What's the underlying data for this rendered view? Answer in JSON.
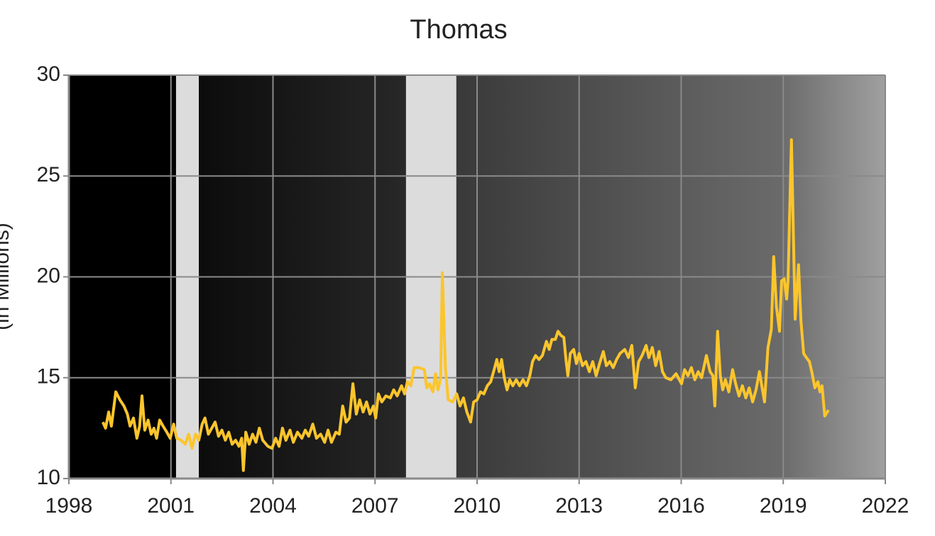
{
  "chart_data": {
    "type": "line",
    "title": "Thomas",
    "ylabel": "(in Millions)",
    "x": [
      1999.0,
      1999.08,
      1999.17,
      1999.25,
      1999.38,
      1999.5,
      1999.62,
      1999.72,
      1999.8,
      1999.9,
      2000.0,
      2000.08,
      2000.15,
      2000.23,
      2000.33,
      2000.42,
      2000.5,
      2000.58,
      2000.67,
      2000.77,
      2000.88,
      2000.98,
      2001.08,
      2001.17,
      2001.3,
      2001.42,
      2001.52,
      2001.62,
      2001.72,
      2001.82,
      2001.92,
      2002.0,
      2002.1,
      2002.2,
      2002.3,
      2002.4,
      2002.5,
      2002.6,
      2002.7,
      2002.8,
      2002.9,
      2003.0,
      2003.08,
      2003.13,
      2003.2,
      2003.3,
      2003.4,
      2003.5,
      2003.6,
      2003.7,
      2003.85,
      2003.97,
      2004.08,
      2004.18,
      2004.28,
      2004.38,
      2004.5,
      2004.6,
      2004.72,
      2004.85,
      2004.95,
      2005.05,
      2005.17,
      2005.28,
      2005.4,
      2005.52,
      2005.62,
      2005.72,
      2005.85,
      2005.95,
      2006.05,
      2006.15,
      2006.25,
      2006.35,
      2006.45,
      2006.55,
      2006.65,
      2006.75,
      2006.85,
      2006.95,
      2007.02,
      2007.1,
      2007.2,
      2007.32,
      2007.45,
      2007.55,
      2007.65,
      2007.78,
      2007.87,
      2007.95,
      2008.05,
      2008.15,
      2008.3,
      2008.45,
      2008.52,
      2008.6,
      2008.7,
      2008.78,
      2008.85,
      2008.93,
      2008.98,
      2009.07,
      2009.15,
      2009.28,
      2009.4,
      2009.5,
      2009.6,
      2009.7,
      2009.81,
      2009.9,
      2010.0,
      2010.1,
      2010.2,
      2010.3,
      2010.4,
      2010.5,
      2010.58,
      2010.65,
      2010.72,
      2010.8,
      2010.88,
      2010.96,
      2011.05,
      2011.15,
      2011.25,
      2011.35,
      2011.45,
      2011.55,
      2011.63,
      2011.72,
      2011.82,
      2011.92,
      2012.04,
      2012.12,
      2012.2,
      2012.3,
      2012.38,
      2012.46,
      2012.55,
      2012.62,
      2012.67,
      2012.74,
      2012.84,
      2012.92,
      2013.0,
      2013.1,
      2013.2,
      2013.3,
      2013.4,
      2013.5,
      2013.6,
      2013.71,
      2013.8,
      2013.9,
      2014.0,
      2014.1,
      2014.2,
      2014.34,
      2014.45,
      2014.55,
      2014.65,
      2014.75,
      2014.85,
      2014.97,
      2015.05,
      2015.15,
      2015.25,
      2015.35,
      2015.45,
      2015.55,
      2015.7,
      2015.85,
      2016.01,
      2016.1,
      2016.2,
      2016.3,
      2016.4,
      2016.5,
      2016.6,
      2016.74,
      2016.85,
      2016.93,
      2016.99,
      2017.07,
      2017.15,
      2017.22,
      2017.3,
      2017.4,
      2017.51,
      2017.6,
      2017.7,
      2017.8,
      2017.9,
      2018.0,
      2018.1,
      2018.2,
      2018.3,
      2018.38,
      2018.45,
      2018.55,
      2018.65,
      2018.72,
      2018.8,
      2018.89,
      2018.95,
      2019.03,
      2019.1,
      2019.14,
      2019.24,
      2019.3,
      2019.35,
      2019.45,
      2019.52,
      2019.6,
      2019.68,
      2019.77,
      2019.85,
      2019.93,
      2020.02,
      2020.08,
      2020.14,
      2020.22,
      2020.33
    ],
    "series": [
      {
        "color": "#fbc52c",
        "values": [
          12.8,
          12.5,
          13.3,
          12.6,
          14.3,
          13.9,
          13.6,
          13.2,
          12.6,
          13.0,
          12.0,
          12.6,
          14.1,
          12.4,
          12.9,
          12.2,
          12.5,
          12.0,
          12.9,
          12.6,
          12.3,
          12.0,
          12.7,
          12.0,
          11.9,
          11.7,
          12.2,
          11.5,
          12.2,
          11.9,
          12.7,
          13.0,
          12.2,
          12.5,
          12.8,
          12.1,
          12.4,
          11.9,
          12.3,
          11.7,
          11.9,
          11.6,
          12.0,
          10.4,
          12.3,
          11.7,
          12.2,
          11.8,
          12.5,
          11.9,
          11.6,
          11.5,
          12.0,
          11.6,
          12.5,
          11.9,
          12.4,
          11.8,
          12.3,
          12.0,
          12.4,
          12.1,
          12.7,
          12.0,
          12.2,
          11.8,
          12.4,
          11.8,
          12.3,
          12.2,
          13.6,
          12.8,
          13.0,
          14.7,
          13.2,
          13.9,
          13.3,
          13.8,
          13.2,
          13.6,
          13.0,
          14.2,
          13.8,
          14.1,
          14.0,
          14.4,
          14.1,
          14.6,
          14.2,
          14.8,
          14.6,
          15.5,
          15.5,
          15.4,
          14.5,
          14.7,
          14.3,
          15.2,
          14.4,
          15.0,
          20.2,
          15.5,
          13.9,
          13.8,
          14.2,
          13.6,
          14.0,
          13.3,
          12.8,
          13.8,
          13.9,
          14.3,
          14.2,
          14.6,
          14.8,
          15.4,
          15.9,
          15.3,
          15.9,
          15.0,
          14.4,
          14.9,
          14.6,
          14.9,
          14.6,
          14.9,
          14.6,
          15.1,
          15.8,
          16.1,
          15.9,
          16.1,
          16.8,
          16.4,
          16.9,
          16.9,
          17.3,
          17.1,
          17.0,
          15.8,
          15.1,
          16.2,
          16.4,
          15.7,
          16.2,
          15.6,
          15.8,
          15.3,
          15.8,
          15.1,
          15.7,
          16.3,
          15.6,
          15.8,
          15.5,
          15.9,
          16.2,
          16.4,
          16.0,
          16.6,
          14.5,
          15.8,
          16.1,
          16.6,
          16.0,
          16.5,
          15.6,
          16.3,
          15.3,
          15.0,
          14.9,
          15.2,
          14.7,
          15.4,
          15.1,
          15.5,
          14.9,
          15.3,
          15.0,
          16.1,
          15.3,
          15.1,
          13.6,
          17.3,
          15.1,
          14.4,
          14.9,
          14.3,
          15.4,
          14.7,
          14.1,
          14.6,
          14.0,
          14.5,
          13.8,
          14.4,
          15.3,
          14.5,
          13.8,
          16.5,
          17.4,
          21.0,
          18.5,
          17.3,
          19.8,
          19.9,
          18.9,
          19.8,
          26.8,
          22.0,
          17.9,
          20.6,
          17.8,
          16.2,
          16.0,
          15.8,
          15.2,
          14.5,
          14.8,
          14.3,
          14.6,
          13.1,
          13.4
        ]
      }
    ],
    "shaded_ranges": [
      {
        "start": 2001.15,
        "end": 2001.82
      },
      {
        "start": 2007.91,
        "end": 2009.39
      }
    ],
    "xlim": [
      1998,
      2022
    ],
    "xticks": [
      1998,
      2001,
      2004,
      2007,
      2010,
      2013,
      2016,
      2019,
      2022
    ],
    "ylim": [
      10,
      30
    ],
    "yticks": [
      10,
      15,
      20,
      25,
      30
    ],
    "grid": true
  }
}
